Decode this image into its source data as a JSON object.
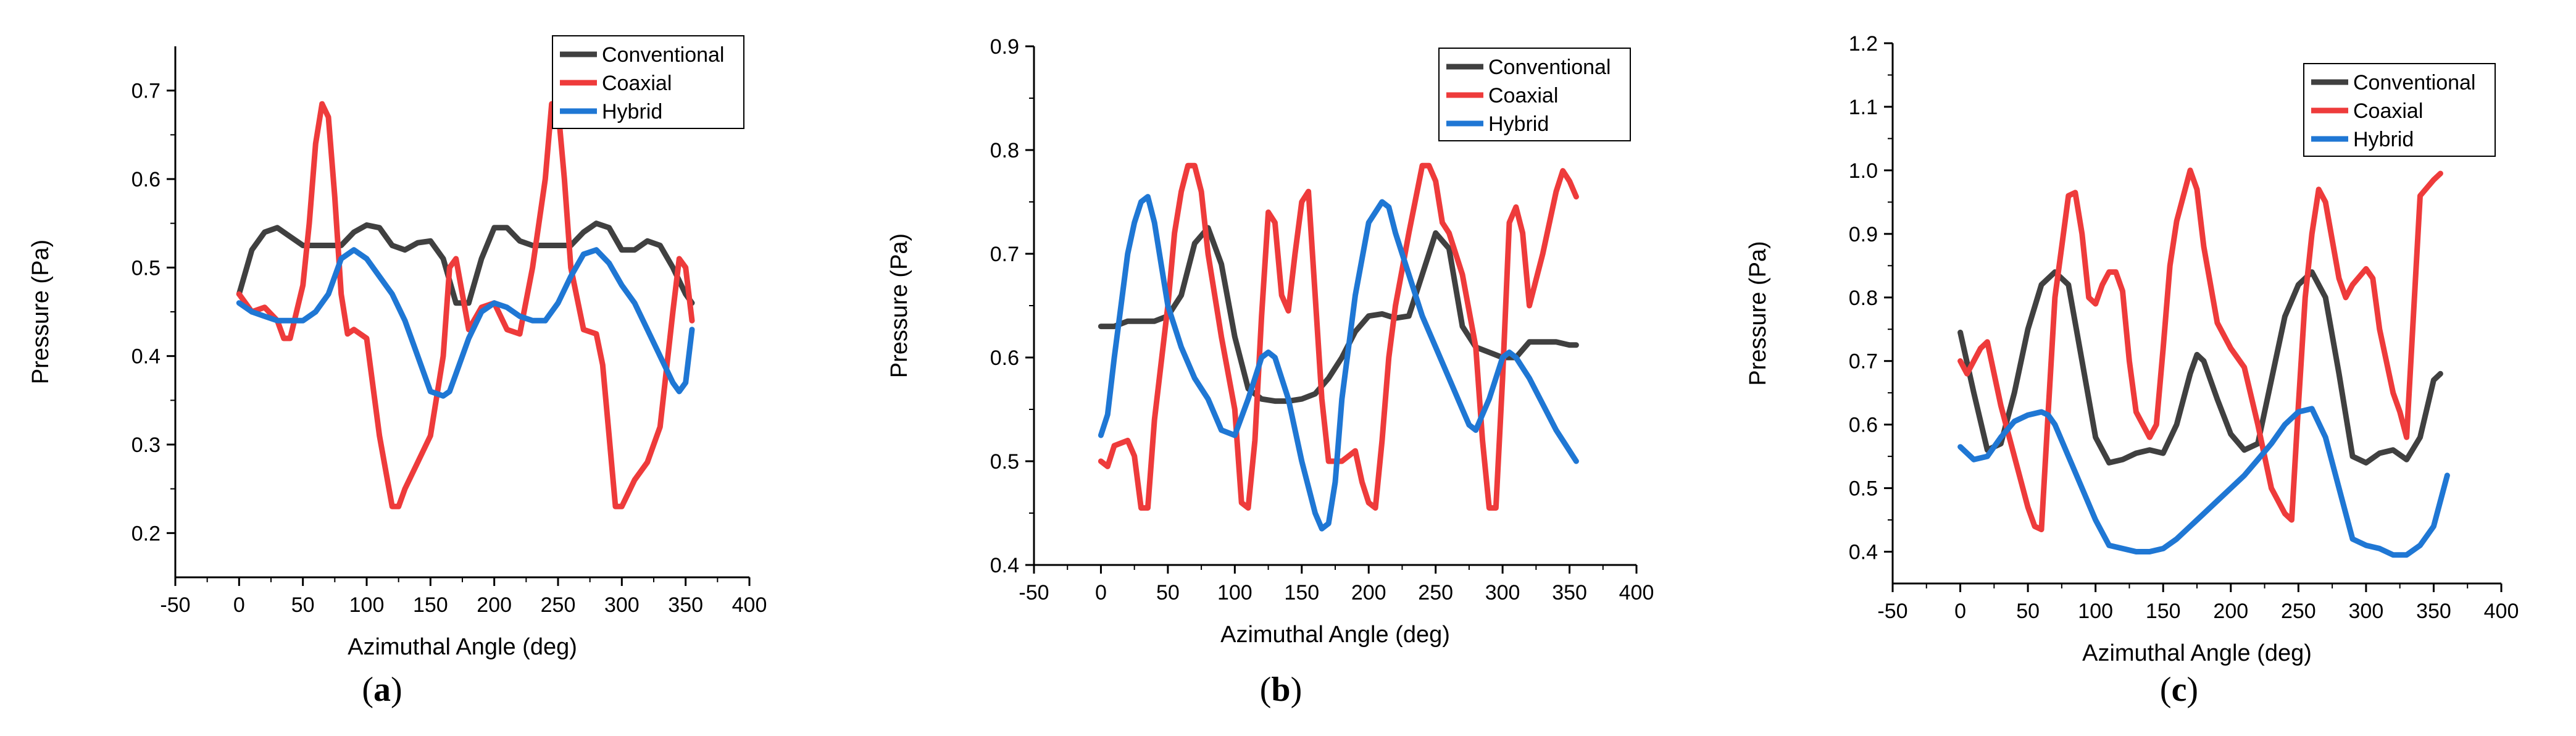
{
  "chart_data": [
    {
      "type": "line",
      "caption": "a",
      "xlabel": "Azimuthal Angle (deg)",
      "ylabel": "Pressure (Pa)",
      "xlim": [
        -50,
        400
      ],
      "ylim": [
        0.15,
        0.75
      ],
      "xticks": [
        -50,
        0,
        50,
        100,
        150,
        200,
        250,
        300,
        350,
        400
      ],
      "yticks": [
        0.2,
        0.3,
        0.4,
        0.5,
        0.6,
        0.7
      ],
      "ytick_labels": [
        "0.2",
        "0.3",
        "0.4",
        "0.5",
        "0.6",
        "0.7"
      ],
      "legend": [
        "Conventional",
        "Coaxial",
        "Hybrid"
      ],
      "series": [
        {
          "name": "Conventional",
          "color": "#404040",
          "x": [
            0,
            10,
            20,
            30,
            40,
            50,
            60,
            70,
            80,
            90,
            100,
            110,
            120,
            130,
            140,
            150,
            160,
            170,
            180,
            190,
            200,
            210,
            220,
            230,
            240,
            250,
            260,
            270,
            280,
            290,
            300,
            310,
            320,
            330,
            340,
            350,
            355
          ],
          "y": [
            0.47,
            0.52,
            0.54,
            0.545,
            0.535,
            0.525,
            0.525,
            0.525,
            0.525,
            0.54,
            0.548,
            0.545,
            0.525,
            0.52,
            0.528,
            0.53,
            0.51,
            0.46,
            0.46,
            0.51,
            0.545,
            0.545,
            0.53,
            0.525,
            0.525,
            0.525,
            0.525,
            0.54,
            0.55,
            0.545,
            0.52,
            0.52,
            0.53,
            0.525,
            0.5,
            0.47,
            0.46
          ]
        },
        {
          "name": "Coaxial",
          "color": "#ee3b3b",
          "x": [
            0,
            10,
            20,
            30,
            35,
            40,
            50,
            55,
            60,
            65,
            70,
            75,
            80,
            85,
            90,
            100,
            110,
            120,
            125,
            130,
            140,
            150,
            160,
            165,
            170,
            180,
            190,
            200,
            210,
            220,
            230,
            240,
            245,
            250,
            255,
            260,
            270,
            280,
            285,
            290,
            295,
            300,
            310,
            320,
            330,
            340,
            345,
            350,
            355
          ],
          "y": [
            0.47,
            0.45,
            0.455,
            0.44,
            0.42,
            0.42,
            0.48,
            0.55,
            0.64,
            0.685,
            0.67,
            0.58,
            0.47,
            0.425,
            0.43,
            0.42,
            0.31,
            0.23,
            0.23,
            0.25,
            0.28,
            0.31,
            0.4,
            0.5,
            0.51,
            0.43,
            0.455,
            0.46,
            0.43,
            0.425,
            0.5,
            0.6,
            0.685,
            0.68,
            0.6,
            0.5,
            0.43,
            0.425,
            0.39,
            0.31,
            0.23,
            0.23,
            0.26,
            0.28,
            0.32,
            0.45,
            0.51,
            0.5,
            0.44
          ]
        },
        {
          "name": "Hybrid",
          "color": "#1f77d4",
          "x": [
            0,
            10,
            20,
            30,
            40,
            50,
            60,
            70,
            80,
            90,
            100,
            110,
            120,
            130,
            140,
            150,
            160,
            165,
            170,
            180,
            190,
            200,
            210,
            220,
            230,
            240,
            250,
            260,
            270,
            280,
            290,
            300,
            310,
            320,
            330,
            340,
            345,
            350,
            355
          ],
          "y": [
            0.46,
            0.45,
            0.445,
            0.44,
            0.44,
            0.44,
            0.45,
            0.47,
            0.51,
            0.52,
            0.51,
            0.49,
            0.47,
            0.44,
            0.4,
            0.36,
            0.355,
            0.36,
            0.38,
            0.42,
            0.45,
            0.46,
            0.455,
            0.445,
            0.44,
            0.44,
            0.46,
            0.49,
            0.515,
            0.52,
            0.505,
            0.48,
            0.46,
            0.43,
            0.4,
            0.37,
            0.36,
            0.37,
            0.43
          ]
        }
      ]
    },
    {
      "type": "line",
      "caption": "b",
      "xlabel": "Azimuthal Angle (deg)",
      "ylabel": "Pressure (Pa)",
      "xlim": [
        -50,
        400
      ],
      "ylim": [
        0.4,
        0.9
      ],
      "xticks": [
        -50,
        0,
        50,
        100,
        150,
        200,
        250,
        300,
        350,
        400
      ],
      "yticks": [
        0.4,
        0.5,
        0.6,
        0.7,
        0.8,
        0.9
      ],
      "ytick_labels": [
        "0.4",
        "0.5",
        "0.6",
        "0.7",
        "0.8",
        "0.9"
      ],
      "legend": [
        "Conventional",
        "Coaxial",
        "Hybrid"
      ],
      "series": [
        {
          "name": "Conventional",
          "color": "#404040",
          "x": [
            0,
            10,
            20,
            30,
            40,
            50,
            60,
            70,
            80,
            90,
            100,
            110,
            120,
            130,
            140,
            150,
            160,
            170,
            180,
            190,
            200,
            210,
            220,
            230,
            240,
            250,
            260,
            270,
            280,
            290,
            300,
            310,
            320,
            330,
            340,
            350,
            355
          ],
          "y": [
            0.63,
            0.63,
            0.635,
            0.635,
            0.635,
            0.64,
            0.66,
            0.71,
            0.725,
            0.69,
            0.62,
            0.57,
            0.56,
            0.558,
            0.558,
            0.56,
            0.565,
            0.58,
            0.6,
            0.625,
            0.64,
            0.642,
            0.638,
            0.64,
            0.68,
            0.72,
            0.705,
            0.63,
            0.61,
            0.605,
            0.6,
            0.6,
            0.615,
            0.615,
            0.615,
            0.612,
            0.612
          ]
        },
        {
          "name": "Coaxial",
          "color": "#ee3b3b",
          "x": [
            0,
            5,
            10,
            20,
            25,
            30,
            35,
            40,
            50,
            55,
            60,
            65,
            70,
            75,
            80,
            90,
            100,
            105,
            110,
            115,
            120,
            125,
            130,
            135,
            140,
            145,
            150,
            155,
            160,
            165,
            170,
            180,
            190,
            195,
            200,
            205,
            210,
            215,
            220,
            230,
            240,
            245,
            250,
            255,
            260,
            270,
            280,
            285,
            290,
            295,
            300,
            305,
            310,
            315,
            320,
            330,
            340,
            345,
            350,
            355
          ],
          "y": [
            0.5,
            0.495,
            0.515,
            0.52,
            0.505,
            0.455,
            0.455,
            0.54,
            0.65,
            0.72,
            0.76,
            0.785,
            0.785,
            0.76,
            0.7,
            0.62,
            0.55,
            0.46,
            0.455,
            0.52,
            0.64,
            0.74,
            0.73,
            0.66,
            0.645,
            0.7,
            0.75,
            0.76,
            0.66,
            0.56,
            0.5,
            0.5,
            0.51,
            0.48,
            0.46,
            0.455,
            0.52,
            0.6,
            0.65,
            0.72,
            0.785,
            0.785,
            0.77,
            0.73,
            0.72,
            0.68,
            0.61,
            0.52,
            0.455,
            0.455,
            0.58,
            0.73,
            0.745,
            0.72,
            0.65,
            0.7,
            0.76,
            0.78,
            0.77,
            0.755
          ]
        },
        {
          "name": "Hybrid",
          "color": "#1f77d4",
          "x": [
            0,
            5,
            10,
            15,
            20,
            25,
            30,
            35,
            40,
            45,
            50,
            60,
            70,
            80,
            90,
            100,
            110,
            115,
            120,
            125,
            130,
            140,
            150,
            160,
            165,
            170,
            175,
            180,
            190,
            200,
            210,
            215,
            220,
            230,
            240,
            250,
            260,
            270,
            275,
            280,
            290,
            300,
            305,
            310,
            320,
            330,
            340,
            350,
            355
          ],
          "y": [
            0.525,
            0.545,
            0.6,
            0.65,
            0.7,
            0.73,
            0.75,
            0.755,
            0.73,
            0.69,
            0.65,
            0.61,
            0.58,
            0.56,
            0.53,
            0.525,
            0.56,
            0.58,
            0.6,
            0.605,
            0.6,
            0.56,
            0.5,
            0.45,
            0.435,
            0.44,
            0.48,
            0.56,
            0.66,
            0.73,
            0.75,
            0.745,
            0.72,
            0.68,
            0.64,
            0.61,
            0.58,
            0.55,
            0.535,
            0.53,
            0.56,
            0.6,
            0.605,
            0.6,
            0.58,
            0.555,
            0.53,
            0.51,
            0.5
          ]
        }
      ]
    },
    {
      "type": "line",
      "caption": "c",
      "xlabel": "Azimuthal Angle (deg)",
      "ylabel": "Pressure (Pa)",
      "xlim": [
        -50,
        400
      ],
      "ylim": [
        0.35,
        1.2
      ],
      "xticks": [
        -50,
        0,
        50,
        100,
        150,
        200,
        250,
        300,
        350,
        400
      ],
      "yticks": [
        0.4,
        0.5,
        0.6,
        0.7,
        0.8,
        0.9,
        1.0,
        1.1,
        1.2
      ],
      "ytick_labels": [
        "0.4",
        "0.5",
        "0.6",
        "0.7",
        "0.8",
        "0.9",
        "1.0",
        "1.1",
        "1.2"
      ],
      "legend": [
        "Conventional",
        "Coaxial",
        "Hybrid"
      ],
      "series": [
        {
          "name": "Conventional",
          "color": "#404040",
          "x": [
            0,
            10,
            20,
            30,
            40,
            50,
            60,
            70,
            80,
            90,
            100,
            110,
            120,
            130,
            140,
            150,
            160,
            170,
            175,
            180,
            190,
            200,
            210,
            220,
            230,
            240,
            250,
            260,
            270,
            280,
            290,
            300,
            310,
            320,
            330,
            340,
            350,
            355
          ],
          "y": [
            0.745,
            0.65,
            0.56,
            0.57,
            0.65,
            0.75,
            0.82,
            0.84,
            0.82,
            0.7,
            0.58,
            0.54,
            0.545,
            0.555,
            0.56,
            0.555,
            0.6,
            0.68,
            0.71,
            0.7,
            0.64,
            0.585,
            0.56,
            0.57,
            0.67,
            0.77,
            0.82,
            0.84,
            0.8,
            0.68,
            0.55,
            0.54,
            0.555,
            0.56,
            0.545,
            0.58,
            0.67,
            0.68
          ]
        },
        {
          "name": "Coaxial",
          "color": "#ee3b3b",
          "x": [
            0,
            5,
            15,
            20,
            30,
            40,
            50,
            55,
            60,
            65,
            70,
            75,
            80,
            85,
            90,
            95,
            100,
            105,
            110,
            115,
            120,
            125,
            130,
            140,
            145,
            150,
            155,
            160,
            170,
            175,
            180,
            190,
            200,
            210,
            220,
            230,
            240,
            245,
            250,
            255,
            260,
            265,
            270,
            280,
            285,
            290,
            300,
            305,
            310,
            320,
            325,
            330,
            340,
            350,
            355
          ],
          "y": [
            0.7,
            0.68,
            0.72,
            0.73,
            0.63,
            0.55,
            0.47,
            0.44,
            0.435,
            0.62,
            0.8,
            0.88,
            0.96,
            0.965,
            0.9,
            0.8,
            0.79,
            0.82,
            0.84,
            0.84,
            0.81,
            0.7,
            0.62,
            0.58,
            0.6,
            0.72,
            0.85,
            0.92,
            1.0,
            0.97,
            0.88,
            0.76,
            0.72,
            0.69,
            0.6,
            0.5,
            0.46,
            0.45,
            0.63,
            0.8,
            0.9,
            0.97,
            0.95,
            0.83,
            0.8,
            0.82,
            0.845,
            0.83,
            0.75,
            0.65,
            0.62,
            0.58,
            0.96,
            0.985,
            0.995
          ]
        },
        {
          "name": "Hybrid",
          "color": "#1f77d4",
          "x": [
            0,
            10,
            20,
            30,
            40,
            50,
            60,
            65,
            70,
            80,
            90,
            100,
            110,
            120,
            130,
            140,
            150,
            160,
            170,
            180,
            190,
            200,
            210,
            220,
            230,
            240,
            250,
            260,
            270,
            280,
            290,
            300,
            310,
            320,
            330,
            340,
            350,
            360
          ],
          "y": [
            0.565,
            0.545,
            0.55,
            0.58,
            0.605,
            0.615,
            0.62,
            0.615,
            0.6,
            0.55,
            0.5,
            0.45,
            0.41,
            0.405,
            0.4,
            0.4,
            0.405,
            0.42,
            0.44,
            0.46,
            0.48,
            0.5,
            0.52,
            0.545,
            0.57,
            0.6,
            0.62,
            0.625,
            0.58,
            0.5,
            0.42,
            0.41,
            0.405,
            0.395,
            0.395,
            0.41,
            0.44,
            0.52
          ]
        }
      ]
    }
  ]
}
